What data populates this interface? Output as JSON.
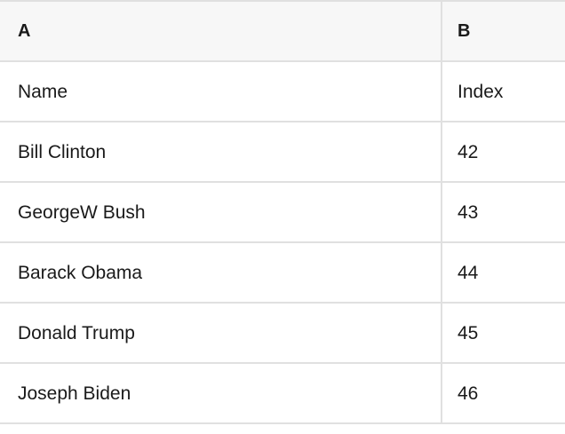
{
  "table": {
    "columns": [
      {
        "label": "A"
      },
      {
        "label": "B"
      }
    ],
    "rows": [
      {
        "a": "Name",
        "b": "Index"
      },
      {
        "a": "Bill Clinton",
        "b": "42"
      },
      {
        "a": "GeorgeW Bush",
        "b": "43"
      },
      {
        "a": "Barack Obama",
        "b": "44"
      },
      {
        "a": "Donald Trump",
        "b": "45"
      },
      {
        "a": "Joseph Biden",
        "b": "46"
      }
    ]
  },
  "colors": {
    "header_bg": "#f7f7f7",
    "grid_border": "#e0e0e0",
    "text": "#1a1a1a"
  }
}
